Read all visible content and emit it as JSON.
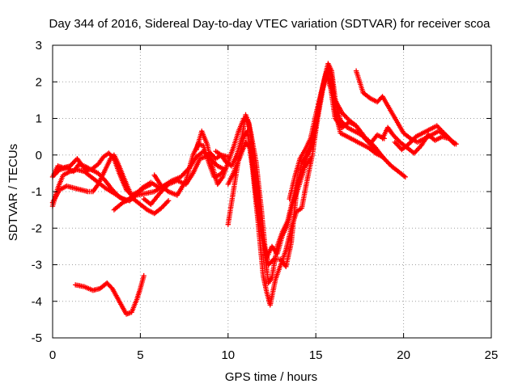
{
  "chart_data": {
    "type": "scatter",
    "title": "Day 344 of 2016, Sidereal Day-to-day VTEC variation (SDTVAR) for receiver scoa",
    "xlabel": "GPS time / hours",
    "ylabel": "SDTVAR / TECUs",
    "xlim": [
      0,
      25
    ],
    "ylim": [
      -5,
      3
    ],
    "xticks": [
      "0",
      "5",
      "10",
      "15",
      "20",
      "25"
    ],
    "yticks": [
      "-5",
      "-4",
      "-3",
      "-2",
      "-1",
      "0",
      "1",
      "2",
      "3"
    ],
    "grid": true,
    "marker": "+",
    "color": "#ff0000",
    "tracks": [
      [
        [
          0.0,
          -1.4
        ],
        [
          0.3,
          -0.9
        ],
        [
          0.6,
          -0.55
        ],
        [
          1.0,
          -0.45
        ],
        [
          1.4,
          -0.4
        ],
        [
          1.8,
          -0.45
        ],
        [
          2.2,
          -0.6
        ],
        [
          2.6,
          -0.75
        ],
        [
          3.0,
          -0.9
        ],
        [
          3.5,
          -1.05
        ],
        [
          4.0,
          -1.2
        ],
        [
          4.4,
          -1.25
        ],
        [
          4.8,
          -1.05
        ],
        [
          5.2,
          -0.9
        ],
        [
          5.6,
          -0.8
        ]
      ],
      [
        [
          0.1,
          -0.55
        ],
        [
          0.4,
          -0.4
        ],
        [
          0.8,
          -0.35
        ],
        [
          1.2,
          -0.45
        ],
        [
          1.5,
          -0.25
        ],
        [
          1.8,
          -0.3
        ],
        [
          2.2,
          -0.4
        ],
        [
          2.6,
          -0.5
        ],
        [
          3.0,
          -0.7
        ],
        [
          3.4,
          -0.95
        ],
        [
          3.8,
          -1.15
        ],
        [
          4.2,
          -1.25
        ],
        [
          4.7,
          -1.1
        ],
        [
          5.1,
          -0.9
        ],
        [
          5.6,
          -0.75
        ],
        [
          6.1,
          -0.9
        ]
      ],
      [
        [
          0.0,
          -0.6
        ],
        [
          0.3,
          -0.3
        ],
        [
          0.6,
          -0.35
        ],
        [
          1.0,
          -0.3
        ],
        [
          1.4,
          -0.1
        ],
        [
          1.7,
          -0.3
        ],
        [
          2.0,
          -0.45
        ]
      ],
      [
        [
          0.0,
          -1.3
        ],
        [
          0.4,
          -0.95
        ],
        [
          0.8,
          -0.85
        ],
        [
          1.2,
          -0.9
        ],
        [
          1.6,
          -0.95
        ],
        [
          2.0,
          -1.0
        ],
        [
          2.3,
          -1.0
        ],
        [
          2.6,
          -0.8
        ],
        [
          3.0,
          -0.4
        ],
        [
          3.3,
          -0.1
        ],
        [
          3.5,
          0.0
        ],
        [
          3.7,
          -0.2
        ],
        [
          4.0,
          -0.55
        ],
        [
          4.3,
          -0.9
        ],
        [
          4.6,
          -1.2
        ],
        [
          5.0,
          -1.35
        ],
        [
          5.4,
          -1.5
        ],
        [
          5.8,
          -1.6
        ],
        [
          6.2,
          -1.45
        ],
        [
          6.6,
          -1.25
        ]
      ],
      [
        [
          2.2,
          -0.4
        ],
        [
          2.6,
          -0.25
        ],
        [
          2.9,
          -0.05
        ],
        [
          3.2,
          0.05
        ],
        [
          3.5,
          -0.1
        ],
        [
          3.8,
          -0.5
        ],
        [
          4.2,
          -0.95
        ],
        [
          4.5,
          -1.1
        ],
        [
          4.9,
          -1.0
        ]
      ],
      [
        [
          1.3,
          -3.55
        ],
        [
          1.8,
          -3.6
        ],
        [
          2.3,
          -3.7
        ],
        [
          2.7,
          -3.65
        ],
        [
          3.1,
          -3.5
        ],
        [
          3.4,
          -3.65
        ],
        [
          3.8,
          -4.0
        ],
        [
          4.2,
          -4.35
        ],
        [
          4.5,
          -4.3
        ],
        [
          4.8,
          -3.95
        ],
        [
          5.0,
          -3.65
        ],
        [
          5.2,
          -3.3
        ]
      ],
      [
        [
          3.5,
          -1.5
        ],
        [
          4.0,
          -1.3
        ],
        [
          4.4,
          -1.2
        ],
        [
          4.8,
          -1.1
        ],
        [
          5.3,
          -1.05
        ],
        [
          5.8,
          -1.0
        ],
        [
          6.3,
          -0.85
        ],
        [
          6.8,
          -0.7
        ],
        [
          7.3,
          -0.6
        ],
        [
          7.8,
          -0.35
        ],
        [
          8.2,
          -0.05
        ],
        [
          8.6,
          0.1
        ],
        [
          9.0,
          -0.1
        ],
        [
          9.4,
          -0.3
        ],
        [
          9.8,
          -0.4
        ]
      ],
      [
        [
          5.2,
          -1.2
        ],
        [
          5.6,
          -1.35
        ],
        [
          6.1,
          -1.05
        ],
        [
          6.6,
          -0.8
        ],
        [
          7.1,
          -0.7
        ],
        [
          7.6,
          -0.8
        ],
        [
          8.0,
          -0.5
        ],
        [
          8.4,
          -0.1
        ],
        [
          8.7,
          -0.05
        ],
        [
          9.0,
          0.05
        ],
        [
          9.3,
          -0.1
        ],
        [
          9.6,
          0.0
        ],
        [
          10.0,
          -0.05
        ]
      ],
      [
        [
          5.8,
          -0.55
        ],
        [
          6.2,
          -0.85
        ],
        [
          6.6,
          -1.0
        ],
        [
          7.1,
          -1.1
        ],
        [
          7.6,
          -0.7
        ],
        [
          8.0,
          0.0
        ],
        [
          8.3,
          0.3
        ],
        [
          8.6,
          0.25
        ],
        [
          8.9,
          -0.2
        ],
        [
          9.2,
          -0.6
        ],
        [
          9.5,
          -0.55
        ],
        [
          9.8,
          -0.4
        ]
      ],
      [
        [
          8.2,
          0.15
        ],
        [
          8.5,
          0.65
        ],
        [
          8.8,
          0.3
        ],
        [
          9.1,
          -0.3
        ],
        [
          9.4,
          -0.8
        ],
        [
          9.7,
          -0.6
        ],
        [
          10.0,
          -0.2
        ],
        [
          10.3,
          0.2
        ],
        [
          10.6,
          0.65
        ],
        [
          10.9,
          1.0
        ],
        [
          11.1,
          0.95
        ],
        [
          11.3,
          0.6
        ],
        [
          11.6,
          -0.2
        ],
        [
          11.9,
          -1.5
        ],
        [
          12.1,
          -2.5
        ],
        [
          12.3,
          -3.0
        ],
        [
          12.6,
          -2.85
        ],
        [
          13.0,
          -2.85
        ],
        [
          13.3,
          -3.05
        ],
        [
          13.6,
          -2.4
        ],
        [
          13.9,
          -1.0
        ],
        [
          14.2,
          -0.2
        ],
        [
          14.5,
          0.0
        ],
        [
          14.8,
          0.3
        ],
        [
          15.1,
          1.0
        ],
        [
          15.4,
          1.8
        ],
        [
          15.7,
          2.35
        ],
        [
          15.9,
          2.15
        ],
        [
          16.1,
          1.2
        ],
        [
          16.4,
          0.6
        ],
        [
          16.8,
          0.5
        ],
        [
          17.2,
          0.4
        ],
        [
          17.6,
          0.3
        ],
        [
          18.0,
          0.2
        ],
        [
          18.4,
          0.05
        ],
        [
          18.8,
          -0.05
        ]
      ],
      [
        [
          9.3,
          0.1
        ],
        [
          9.6,
          0.0
        ],
        [
          9.9,
          -0.2
        ],
        [
          10.2,
          -0.3
        ],
        [
          10.5,
          0.0
        ],
        [
          10.8,
          0.5
        ],
        [
          11.0,
          1.1
        ],
        [
          11.2,
          0.85
        ],
        [
          11.4,
          0.1
        ],
        [
          11.7,
          -1.0
        ],
        [
          11.9,
          -2.1
        ],
        [
          12.1,
          -2.75
        ],
        [
          12.3,
          -3.5
        ],
        [
          12.5,
          -3.35
        ],
        [
          12.8,
          -2.5
        ],
        [
          13.1,
          -2.1
        ],
        [
          13.4,
          -1.8
        ],
        [
          13.7,
          -1.2
        ],
        [
          14.0,
          -0.7
        ],
        [
          14.3,
          -0.3
        ],
        [
          14.6,
          0.1
        ],
        [
          14.9,
          0.6
        ],
        [
          15.2,
          1.4
        ],
        [
          15.5,
          2.1
        ],
        [
          15.7,
          2.5
        ],
        [
          15.9,
          2.3
        ],
        [
          16.1,
          1.55
        ],
        [
          16.4,
          0.95
        ],
        [
          16.8,
          0.75
        ],
        [
          17.2,
          0.65
        ],
        [
          17.6,
          0.55
        ],
        [
          18.0,
          0.4
        ],
        [
          18.4,
          0.2
        ],
        [
          18.8,
          -0.05
        ]
      ],
      [
        [
          10.0,
          -1.9
        ],
        [
          10.3,
          -1.0
        ],
        [
          10.6,
          -0.1
        ],
        [
          10.9,
          0.5
        ],
        [
          11.1,
          0.65
        ],
        [
          11.4,
          -0.4
        ],
        [
          11.7,
          -1.8
        ],
        [
          12.0,
          -3.3
        ],
        [
          12.2,
          -3.75
        ],
        [
          12.4,
          -4.1
        ],
        [
          12.7,
          -3.4
        ],
        [
          13.0,
          -3.0
        ],
        [
          13.3,
          -2.6
        ],
        [
          13.6,
          -2.0
        ],
        [
          13.9,
          -1.55
        ],
        [
          14.2,
          -1.45
        ],
        [
          14.5,
          -0.7
        ],
        [
          14.8,
          0.0
        ],
        [
          15.1,
          1.0
        ],
        [
          15.4,
          1.9
        ],
        [
          15.6,
          2.25
        ],
        [
          15.8,
          1.9
        ],
        [
          16.1,
          1.5
        ],
        [
          16.5,
          1.15
        ],
        [
          16.9,
          0.95
        ],
        [
          17.3,
          0.8
        ],
        [
          17.7,
          0.55
        ],
        [
          18.1,
          0.3
        ],
        [
          18.5,
          0.1
        ],
        [
          18.9,
          -0.1
        ],
        [
          19.3,
          -0.3
        ],
        [
          19.7,
          -0.45
        ],
        [
          20.1,
          -0.6
        ]
      ],
      [
        [
          10.0,
          -0.8
        ],
        [
          10.3,
          -0.5
        ],
        [
          10.6,
          -0.15
        ],
        [
          11.0,
          0.35
        ],
        [
          11.3,
          0.15
        ],
        [
          11.6,
          -1.1
        ],
        [
          11.9,
          -2.2
        ],
        [
          12.2,
          -2.8
        ],
        [
          12.5,
          -2.5
        ],
        [
          12.8,
          -2.7
        ],
        [
          13.1,
          -2.2
        ],
        [
          13.4,
          -1.9
        ],
        [
          13.7,
          -1.3
        ],
        [
          14.0,
          -0.9
        ],
        [
          14.4,
          -0.3
        ],
        [
          14.7,
          -0.1
        ]
      ],
      [
        [
          13.5,
          -1.2
        ],
        [
          13.8,
          -0.6
        ],
        [
          14.1,
          -0.1
        ],
        [
          14.4,
          0.15
        ],
        [
          14.7,
          0.45
        ],
        [
          15.0,
          1.1
        ],
        [
          15.3,
          1.7
        ],
        [
          15.6,
          2.2
        ],
        [
          15.8,
          2.0
        ],
        [
          16.1,
          1.0
        ],
        [
          16.5,
          0.75
        ],
        [
          16.9,
          0.9
        ],
        [
          17.3,
          0.8
        ],
        [
          17.7,
          0.5
        ],
        [
          18.1,
          0.3
        ],
        [
          18.5,
          0.55
        ],
        [
          18.9,
          0.45
        ]
      ],
      [
        [
          17.3,
          2.3
        ],
        [
          17.7,
          1.7
        ],
        [
          18.1,
          1.55
        ],
        [
          18.5,
          1.45
        ],
        [
          18.8,
          1.6
        ],
        [
          19.1,
          1.35
        ],
        [
          19.4,
          1.1
        ],
        [
          19.7,
          0.85
        ],
        [
          20.0,
          0.6
        ],
        [
          20.4,
          0.45
        ],
        [
          20.8,
          0.35
        ],
        [
          21.2,
          0.45
        ],
        [
          21.6,
          0.55
        ],
        [
          22.0,
          0.65
        ],
        [
          22.4,
          0.55
        ],
        [
          22.8,
          0.35
        ]
      ],
      [
        [
          18.8,
          0.45
        ],
        [
          19.1,
          0.75
        ],
        [
          19.4,
          0.55
        ],
        [
          19.8,
          0.35
        ],
        [
          20.2,
          0.2
        ],
        [
          20.6,
          0.05
        ],
        [
          21.0,
          0.25
        ],
        [
          21.4,
          0.55
        ],
        [
          21.8,
          0.4
        ],
        [
          22.2,
          0.5
        ],
        [
          22.6,
          0.45
        ],
        [
          22.9,
          0.3
        ]
      ],
      [
        [
          19.5,
          0.35
        ],
        [
          19.9,
          0.15
        ],
        [
          20.3,
          0.3
        ],
        [
          20.7,
          0.5
        ],
        [
          21.1,
          0.6
        ],
        [
          21.5,
          0.7
        ],
        [
          21.9,
          0.8
        ],
        [
          22.3,
          0.6
        ],
        [
          22.7,
          0.4
        ],
        [
          23.0,
          0.3
        ]
      ]
    ]
  }
}
